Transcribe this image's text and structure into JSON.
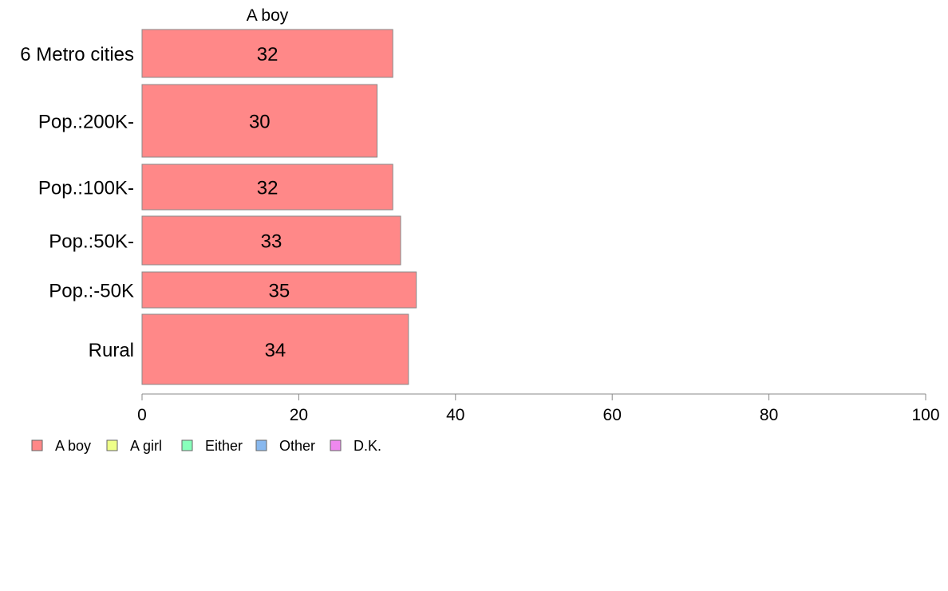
{
  "chart_data": {
    "type": "bar",
    "orientation": "horizontal",
    "title": "A boy",
    "xlabel": "",
    "ylabel": "",
    "xlim": [
      0,
      100
    ],
    "x_ticks": [
      0,
      20,
      40,
      60,
      80,
      100
    ],
    "grid": false,
    "legend_position": "bottom-left",
    "categories": [
      "6 Metro cities",
      "Pop.:200K-",
      "Pop.:100K-",
      "Pop.:50K-",
      "Pop.:-50K",
      "Rural"
    ],
    "series": [
      {
        "name": "A boy",
        "color": "#ff8888",
        "values": [
          32,
          30,
          32,
          33,
          35,
          34
        ]
      }
    ],
    "data_labels": [
      "32",
      "30",
      "32",
      "33",
      "35",
      "34"
    ],
    "legend": [
      {
        "label": "A boy",
        "color": "#ff8888"
      },
      {
        "label": "A girl",
        "color": "#eeff88"
      },
      {
        "label": "Either",
        "color": "#88ffbb"
      },
      {
        "label": "Other",
        "color": "#88b8ee"
      },
      {
        "label": "D.K.",
        "color": "#ee88ee"
      }
    ]
  }
}
